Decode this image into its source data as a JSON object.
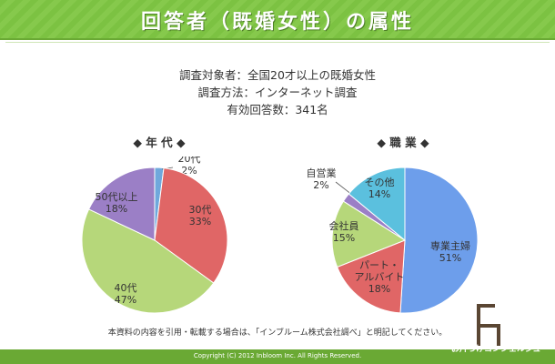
{
  "header": {
    "title": "回答者（既婚女性）の属性"
  },
  "survey": {
    "target": "調査対象者：全国20才以上の既婚女性",
    "method": "調査方法：インターネット調査",
    "responses": "有効回答数：341名"
  },
  "sections": {
    "age_title": "◆ 年 代 ◆",
    "job_title": "◆ 職 業 ◆"
  },
  "chart_data": [
    {
      "type": "pie",
      "title": "◆ 年 代 ◆",
      "slices": [
        {
          "line1": "20代",
          "line2": "2%",
          "value": 2,
          "color": "#6fa8dc"
        },
        {
          "line1": "30代",
          "line2": "33%",
          "value": 33,
          "color": "#e06666"
        },
        {
          "line1": "40代",
          "line2": "47%",
          "value": 47,
          "color": "#b6d77a"
        },
        {
          "line1": "50代以上",
          "line2": "18%",
          "value": 18,
          "color": "#9b7fc6"
        }
      ]
    },
    {
      "type": "pie",
      "title": "◆ 職 業 ◆",
      "slices": [
        {
          "line1": "専業主婦",
          "line2": "51%",
          "value": 51,
          "color": "#6d9eeb"
        },
        {
          "line1": "パート・",
          "line2": "アルバイト",
          "line3": "18%",
          "value": 18,
          "color": "#e06666"
        },
        {
          "line1": "会社員",
          "line2": "15%",
          "value": 15,
          "color": "#b6d77a"
        },
        {
          "line1": "自営業",
          "line2": "2%",
          "value": 2,
          "color": "#9b7fc6"
        },
        {
          "line1": "その他",
          "line2": "14%",
          "value": 14,
          "color": "#5bc0de"
        }
      ]
    }
  ],
  "note": "本資料の内容を引用・転載する場合は、「インブルーム株式会社調べ」と明記してください。",
  "footer": {
    "copyright": "Copyright (C) 2012 Inbloom Inc. All Rights Reserved.",
    "brand": "お片づけコンシェルジュ"
  }
}
